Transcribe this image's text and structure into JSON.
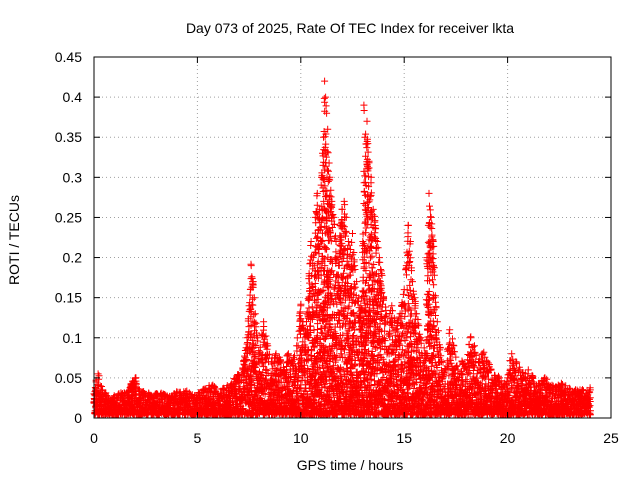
{
  "chart_data": {
    "type": "scatter",
    "title": "Day 073 of 2025, Rate Of TEC Index for receiver lkta",
    "xlabel": "GPS time / hours",
    "ylabel": "ROTI / TECUs",
    "xlim": [
      0,
      25
    ],
    "ylim": [
      0,
      0.45
    ],
    "xticks": [
      0,
      5,
      10,
      15,
      20,
      25
    ],
    "xtick_labels": [
      "0",
      "5",
      "10",
      "15",
      "20",
      "25"
    ],
    "yticks": [
      0,
      0.05,
      0.1,
      0.15,
      0.2,
      0.25,
      0.3,
      0.35,
      0.4,
      0.45
    ],
    "ytick_labels": [
      "0",
      "0.05",
      "0.1",
      "0.15",
      "0.2",
      "0.25",
      "0.3",
      "0.35",
      "0.4",
      "0.45"
    ],
    "grid": true,
    "marker": "+",
    "color": "#ff0000",
    "series": [
      {
        "name": "ROTI",
        "x": [
          0.0,
          0.1,
          0.2,
          0.3,
          0.4,
          0.5,
          0.6,
          0.7,
          0.8,
          0.9,
          1.0,
          1.2,
          1.4,
          1.6,
          1.8,
          2.0,
          2.2,
          2.4,
          2.6,
          2.8,
          3.0,
          3.3,
          3.6,
          3.9,
          4.2,
          4.5,
          4.8,
          5.1,
          5.4,
          5.7,
          6.0,
          6.3,
          6.6,
          6.9,
          7.2,
          7.4,
          7.5,
          7.6,
          7.7,
          7.8,
          7.9,
          8.0,
          8.2,
          8.4,
          8.6,
          8.8,
          9.0,
          9.2,
          9.4,
          9.6,
          9.8,
          10.0,
          10.1,
          10.2,
          10.3,
          10.4,
          10.5,
          10.6,
          10.7,
          10.8,
          10.9,
          11.0,
          11.05,
          11.1,
          11.15,
          11.2,
          11.25,
          11.3,
          11.4,
          11.5,
          11.6,
          11.7,
          11.8,
          11.9,
          12.0,
          12.1,
          12.2,
          12.3,
          12.4,
          12.5,
          12.6,
          12.7,
          12.8,
          12.9,
          13.0,
          13.05,
          13.1,
          13.2,
          13.3,
          13.4,
          13.5,
          13.6,
          13.7,
          13.8,
          13.9,
          14.0,
          14.2,
          14.4,
          14.6,
          14.8,
          15.0,
          15.1,
          15.2,
          15.3,
          15.4,
          15.5,
          15.6,
          15.8,
          16.0,
          16.1,
          16.2,
          16.3,
          16.4,
          16.6,
          16.8,
          17.0,
          17.2,
          17.4,
          17.6,
          17.8,
          18.0,
          18.2,
          18.4,
          18.6,
          18.8,
          19.0,
          19.2,
          19.4,
          19.6,
          19.8,
          20.0,
          20.2,
          20.4,
          20.6,
          20.8,
          21.0,
          21.2,
          21.4,
          21.6,
          21.8,
          22.0,
          22.3,
          22.6,
          22.9,
          23.2,
          23.5,
          23.8,
          24.0
        ],
        "y": [
          0.03,
          0.045,
          0.055,
          0.04,
          0.035,
          0.03,
          0.028,
          0.025,
          0.022,
          0.02,
          0.025,
          0.03,
          0.028,
          0.032,
          0.04,
          0.05,
          0.035,
          0.03,
          0.028,
          0.025,
          0.03,
          0.028,
          0.025,
          0.03,
          0.028,
          0.03,
          0.025,
          0.03,
          0.035,
          0.04,
          0.03,
          0.035,
          0.04,
          0.05,
          0.06,
          0.1,
          0.14,
          0.19,
          0.17,
          0.13,
          0.1,
          0.08,
          0.12,
          0.09,
          0.07,
          0.08,
          0.07,
          0.06,
          0.08,
          0.07,
          0.09,
          0.14,
          0.12,
          0.1,
          0.13,
          0.18,
          0.22,
          0.2,
          0.25,
          0.28,
          0.26,
          0.3,
          0.33,
          0.35,
          0.42,
          0.4,
          0.38,
          0.36,
          0.3,
          0.27,
          0.25,
          0.22,
          0.2,
          0.24,
          0.26,
          0.27,
          0.25,
          0.22,
          0.21,
          0.23,
          0.19,
          0.17,
          0.15,
          0.14,
          0.22,
          0.39,
          0.35,
          0.37,
          0.32,
          0.3,
          0.26,
          0.24,
          0.22,
          0.2,
          0.18,
          0.15,
          0.12,
          0.14,
          0.11,
          0.13,
          0.16,
          0.19,
          0.24,
          0.22,
          0.17,
          0.15,
          0.13,
          0.1,
          0.08,
          0.2,
          0.28,
          0.25,
          0.22,
          0.12,
          0.07,
          0.06,
          0.11,
          0.09,
          0.06,
          0.07,
          0.06,
          0.1,
          0.09,
          0.07,
          0.08,
          0.07,
          0.06,
          0.05,
          0.05,
          0.04,
          0.05,
          0.08,
          0.07,
          0.06,
          0.05,
          0.06,
          0.05,
          0.04,
          0.04,
          0.05,
          0.04,
          0.035,
          0.04,
          0.035,
          0.03,
          0.035,
          0.03,
          0.035
        ]
      }
    ]
  }
}
